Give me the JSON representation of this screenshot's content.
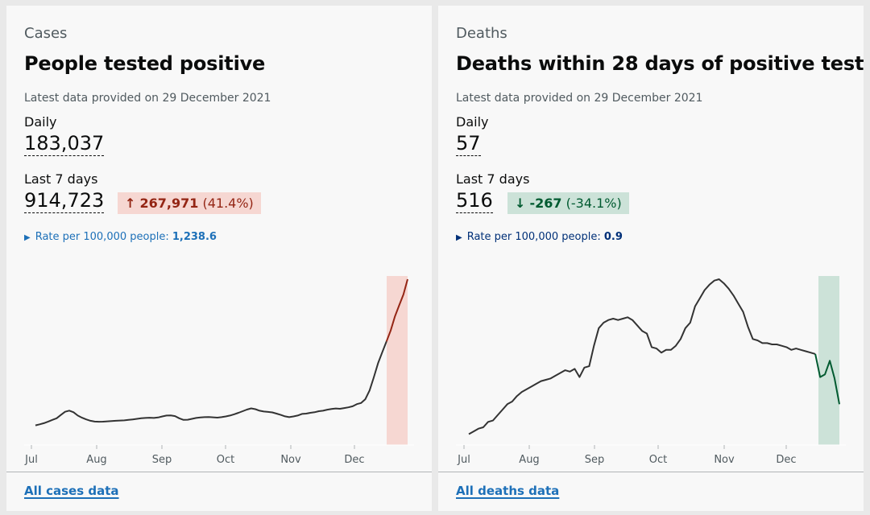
{
  "cards": [
    {
      "caption": "Cases",
      "title": "People tested positive",
      "latest": "Latest data provided on 29 December 2021",
      "daily_label": "Daily",
      "daily_value": "183,037",
      "week_label": "Last 7 days",
      "week_value": "914,723",
      "change_arrow": "↑",
      "change_amount": "267,971",
      "change_percent": "(41.4%)",
      "change_bg": "#f6d7d2",
      "change_color": "#942514",
      "rate_label": "Rate per 100,000 people:",
      "rate_value": "1,238.6",
      "rate_color": "#1d70b8",
      "footer_link": "All cases data"
    },
    {
      "caption": "Deaths",
      "title": "Deaths within 28 days of positive test",
      "latest": "Latest data provided on 29 December 2021",
      "daily_label": "Daily",
      "daily_value": "57",
      "week_label": "Last 7 days",
      "week_value": "516",
      "change_arrow": "↓",
      "change_amount": "-267",
      "change_percent": "(-34.1%)",
      "change_bg": "#cce2d8",
      "change_color": "#005a30",
      "rate_label": "Rate per 100,000 people:",
      "rate_value": "0.9",
      "rate_color": "#003078",
      "footer_link": "All deaths data"
    }
  ],
  "chart_data": [
    {
      "type": "line",
      "x_labels": [
        "Jul",
        "Aug",
        "Sep",
        "Oct",
        "Nov",
        "Dec"
      ],
      "highlight": "last 7 days",
      "line_color": "#333333",
      "highlight_color": "#942514",
      "highlight_fill": "#f6d7d2",
      "values": [
        18000,
        19000,
        20000,
        21500,
        23000,
        24500,
        27500,
        30500,
        31500,
        30000,
        27000,
        25000,
        23500,
        22200,
        21500,
        21300,
        21400,
        21700,
        22000,
        22200,
        22400,
        22600,
        23000,
        23500,
        24000,
        24500,
        24800,
        25000,
        24800,
        25200,
        26200,
        27000,
        27100,
        26500,
        24500,
        23000,
        23200,
        24000,
        24800,
        25200,
        25500,
        25600,
        25400,
        25100,
        25500,
        26200,
        27000,
        28200,
        29500,
        31000,
        32500,
        33600,
        32800,
        31400,
        30700,
        30300,
        29900,
        28800,
        27600,
        26300,
        25500,
        26200,
        27000,
        28500,
        28800,
        29500,
        30000,
        31000,
        31400,
        32400,
        33000,
        33500,
        33200,
        33900,
        34500,
        35500,
        37500,
        38500,
        42000,
        50000,
        62000,
        75000,
        85000,
        95000,
        105000,
        118000,
        128000,
        138000,
        152000
      ]
    },
    {
      "type": "line",
      "x_labels": [
        "Jul",
        "Aug",
        "Sep",
        "Oct",
        "Nov",
        "Dec"
      ],
      "highlight": "last 7 days",
      "line_color": "#333333",
      "highlight_color": "#005a30",
      "highlight_fill": "#cce2d8",
      "values": [
        8,
        10,
        12,
        13,
        17,
        18,
        22,
        26,
        30,
        32,
        36,
        39,
        41,
        43,
        45,
        47,
        48,
        49,
        51,
        53,
        55,
        54,
        56,
        50,
        57,
        58,
        73,
        86,
        90,
        92,
        93,
        92,
        93,
        94,
        92,
        88,
        84,
        82,
        72,
        71,
        68,
        70,
        70,
        73,
        78,
        86,
        90,
        102,
        108,
        114,
        118,
        121,
        122,
        119,
        115,
        110,
        104,
        98,
        87,
        78,
        77,
        75,
        75,
        74,
        74,
        73,
        72,
        70,
        71,
        70,
        69,
        68,
        67,
        50,
        52,
        62,
        49,
        30
      ]
    }
  ]
}
